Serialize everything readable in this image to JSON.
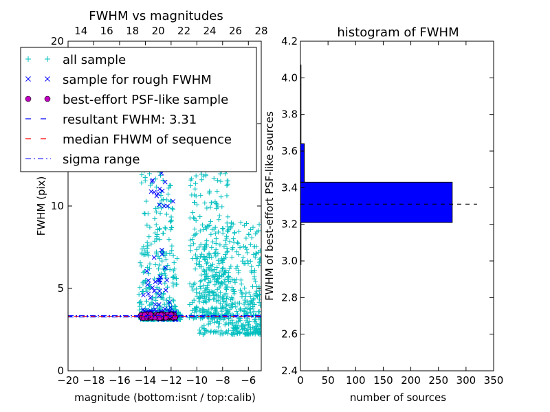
{
  "colors": {
    "all_sample": "#00bfbf",
    "rough_sample": "#0000ff",
    "psf_sample": "#bf00bf",
    "resultant": "#0000ff",
    "median": "#ff0000",
    "sigma": "#0000ff",
    "hist_bar": "#0000ff"
  },
  "chart_data": [
    {
      "type": "scatter",
      "title": "FWHM vs magnitudes",
      "xlabel": "magnitude (bottom:isnt / top:calib)",
      "ylabel": "FWHM (pix)",
      "xlim": [
        -20,
        -5
      ],
      "ylim": [
        0,
        20
      ],
      "xticks": [
        -20,
        -18,
        -16,
        -14,
        -12,
        -10,
        -8,
        -6
      ],
      "xtick_labels": [
        "−20",
        "−18",
        "−16",
        "−14",
        "−12",
        "−10",
        "−8",
        "−6"
      ],
      "yticks": [
        0,
        5,
        10,
        15,
        20
      ],
      "ytick_labels": [
        "0",
        "5",
        "10",
        "15",
        "20"
      ],
      "top_axis": {
        "xlim": [
          13,
          28
        ],
        "ticks": [
          14,
          16,
          18,
          20,
          22,
          24,
          26,
          28
        ],
        "tick_labels": [
          "14",
          "16",
          "18",
          "20",
          "22",
          "24",
          "26",
          "28"
        ]
      },
      "legend": {
        "placement": "upper-left",
        "entries": [
          "all sample",
          "sample for rough FWHM",
          "best-effort PSF-like sample",
          "resultant FWHM: 3.31",
          "median FHWM of sequence",
          "sigma range"
        ]
      },
      "series": [
        {
          "name": "all sample",
          "marker": "+",
          "clusters": [
            {
              "x": [
                -14.4,
                -11.2
              ],
              "y": [
                3.1,
                3.6
              ],
              "n": 260
            },
            {
              "x": [
                -14.5,
                -11.5
              ],
              "y": [
                3.6,
                7.0
              ],
              "n": 130
            },
            {
              "x": [
                -14.3,
                -11.8
              ],
              "y": [
                7.0,
                19.5
              ],
              "n": 160
            },
            {
              "x": [
                -10.6,
                -7.5
              ],
              "y": [
                3.2,
                16.5
              ],
              "n": 320
            },
            {
              "x": [
                -9.8,
                -5.0
              ],
              "y": [
                2.2,
                9.0
              ],
              "n": 340
            },
            {
              "x": [
                -8.0,
                -5.0
              ],
              "y": [
                2.2,
                5.0
              ],
              "n": 120
            }
          ]
        },
        {
          "name": "sample for rough FWHM",
          "marker": "x",
          "clusters": [
            {
              "x": [
                -14.3,
                -11.6
              ],
              "y": [
                3.1,
                3.6
              ],
              "n": 60
            },
            {
              "x": [
                -14.2,
                -12.0
              ],
              "y": [
                3.6,
                7.5
              ],
              "n": 35
            },
            {
              "x": [
                -13.6,
                -11.8
              ],
              "y": [
                10.0,
                12.5
              ],
              "n": 14
            }
          ]
        },
        {
          "name": "best-effort PSF-like sample",
          "marker": "o",
          "clusters": [
            {
              "x": [
                -14.4,
                -11.6
              ],
              "y": [
                3.2,
                3.45
              ],
              "n": 130
            }
          ]
        },
        {
          "name": "resultant FWHM: 3.31",
          "line": "dashed",
          "y": 3.31
        },
        {
          "name": "median FHWM of sequence",
          "line": "dashed",
          "y": 3.31
        },
        {
          "name": "sigma range",
          "line": "dashdot",
          "y": [
            3.26,
            3.36
          ]
        }
      ],
      "grid": false
    },
    {
      "type": "bar",
      "orientation": "horizontal",
      "title": "histogram of FWHM",
      "xlabel": "number of sources",
      "ylabel": "FWHM of best-effort PSF-like sources",
      "xlim": [
        0,
        350
      ],
      "ylim": [
        2.4,
        4.2
      ],
      "xticks": [
        0,
        50,
        100,
        150,
        200,
        250,
        300,
        350
      ],
      "yticks": [
        2.4,
        2.6,
        2.8,
        3.0,
        3.2,
        3.4,
        3.6,
        3.8,
        4.0,
        4.2
      ],
      "ytick_labels": [
        "2.4",
        "2.6",
        "2.8",
        "3.0",
        "3.2",
        "3.4",
        "3.6",
        "3.8",
        "4.0",
        "4.2"
      ],
      "bins": [
        {
          "y0": 2.98,
          "y1": 3.21,
          "count": 1
        },
        {
          "y0": 3.21,
          "y1": 3.43,
          "count": 275
        },
        {
          "y0": 3.43,
          "y1": 3.64,
          "count": 7
        },
        {
          "y0": 3.64,
          "y1": 4.07,
          "count": 1
        }
      ],
      "reference_line": {
        "y": 3.31,
        "x_range": [
          0,
          320
        ],
        "style": "dashed"
      },
      "grid": false
    }
  ]
}
